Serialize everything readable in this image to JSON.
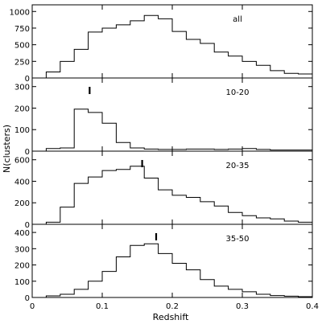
{
  "chart_data": {
    "type": "histogram",
    "xlabel": "Redshift",
    "ylabel": "N(clusters)",
    "xlim": [
      0,
      0.4
    ],
    "xticks": [
      "0",
      "0.1",
      "0.2",
      "0.3",
      "0.4"
    ],
    "bin_edges": [
      0.02,
      0.04,
      0.06,
      0.08,
      0.1,
      0.12,
      0.14,
      0.16,
      0.18,
      0.2,
      0.22,
      0.24,
      0.26,
      0.28,
      0.3,
      0.32,
      0.34,
      0.36,
      0.38,
      0.4
    ],
    "panels": [
      {
        "label": "all",
        "ylim": [
          0,
          1100
        ],
        "yticks": [
          "0",
          "250",
          "500",
          "750",
          "1000"
        ],
        "values": [
          90,
          250,
          430,
          690,
          750,
          800,
          860,
          940,
          890,
          700,
          580,
          520,
          390,
          330,
          250,
          190,
          110,
          70,
          60
        ],
        "marker": null
      },
      {
        "label": "10-20",
        "ylim": [
          0,
          340
        ],
        "yticks": [
          "0",
          "100",
          "200",
          "300"
        ],
        "values": [
          12,
          15,
          195,
          180,
          130,
          40,
          15,
          10,
          8,
          8,
          10,
          10,
          8,
          10,
          12,
          8,
          5,
          5,
          5
        ],
        "marker": 0.082
      },
      {
        "label": "20-35",
        "ylim": [
          0,
          680
        ],
        "yticks": [
          "0",
          "200",
          "400",
          "600"
        ],
        "values": [
          20,
          160,
          380,
          440,
          500,
          510,
          540,
          430,
          320,
          270,
          250,
          210,
          170,
          110,
          80,
          60,
          50,
          30,
          20
        ],
        "marker": 0.157
      },
      {
        "label": "35-50",
        "ylim": [
          0,
          450
        ],
        "yticks": [
          "0",
          "100",
          "200",
          "300",
          "400"
        ],
        "values": [
          10,
          20,
          50,
          100,
          160,
          250,
          320,
          330,
          270,
          210,
          170,
          110,
          70,
          50,
          35,
          20,
          12,
          8,
          5
        ],
        "marker": 0.177
      }
    ]
  }
}
